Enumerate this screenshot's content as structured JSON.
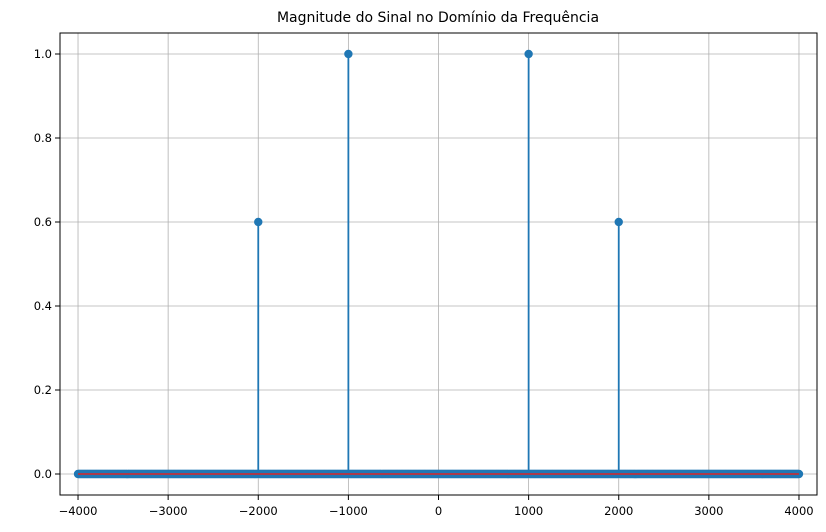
{
  "chart_data": {
    "type": "stem",
    "title": "Magnitude do Sinal no Domínio da Frequência",
    "xlabel": "",
    "ylabel": "",
    "xlim": [
      -4200,
      4200
    ],
    "ylim": [
      -0.05,
      1.05
    ],
    "xticks": [
      -4000,
      -3000,
      -2000,
      -1000,
      0,
      1000,
      2000,
      3000,
      4000
    ],
    "xtick_labels": [
      "−4000",
      "−3000",
      "−2000",
      "−1000",
      "0",
      "1000",
      "2000",
      "3000",
      "4000"
    ],
    "yticks": [
      0.0,
      0.2,
      0.4,
      0.6,
      0.8,
      1.0
    ],
    "ytick_labels": [
      "0.0",
      "0.2",
      "0.4",
      "0.6",
      "0.8",
      "1.0"
    ],
    "grid": true,
    "series": [
      {
        "x_range": [
          -4000,
          4000
        ],
        "x_step": 10,
        "baseline_value": 0.0,
        "peaks": [
          {
            "x": -2000,
            "y": 0.6
          },
          {
            "x": -1000,
            "y": 1.0
          },
          {
            "x": 1000,
            "y": 1.0
          },
          {
            "x": 2000,
            "y": 0.6
          }
        ]
      }
    ],
    "colors": {
      "stem": "#1f77b4",
      "marker": "#1f77b4",
      "baseline": "#d62728",
      "grid": "#b0b0b0",
      "axes": "#000000"
    }
  }
}
